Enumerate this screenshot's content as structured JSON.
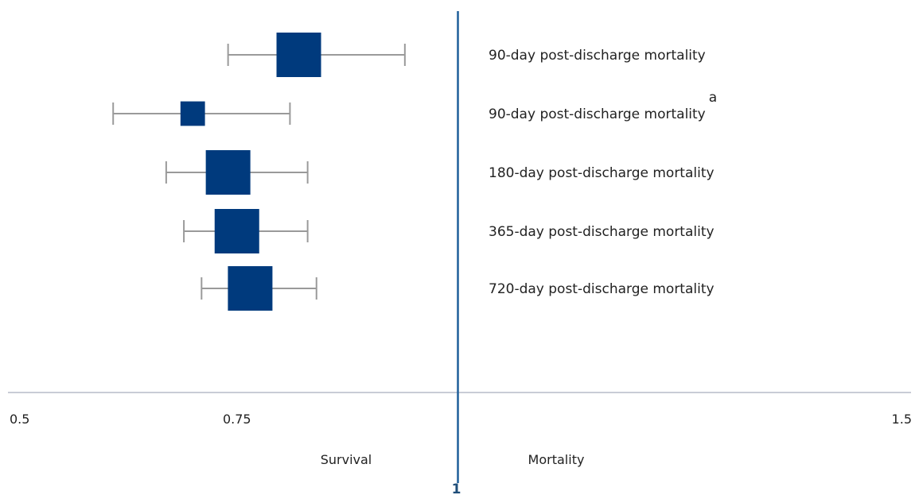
{
  "chart_data": {
    "type": "forest",
    "xlim": [
      0.5,
      1.5
    ],
    "x_ticks": [
      {
        "value": 0.5,
        "label": "0.5"
      },
      {
        "value": 0.75,
        "label": "0.75"
      },
      {
        "value": 1.5,
        "label": "1.5"
      }
    ],
    "reference_line": {
      "value": 1,
      "label": "1"
    },
    "side_labels": {
      "left": "Survival",
      "right": "Mortality"
    },
    "grid": false,
    "legend": "none",
    "rows": [
      {
        "label": "90-day post-discharge mortality",
        "superscript": "",
        "estimate": 0.82,
        "ci_low": 0.74,
        "ci_high": 0.94,
        "weight": 1.0
      },
      {
        "label": "90-day post-discharge mortality",
        "superscript": "a",
        "estimate": 0.7,
        "ci_low": 0.61,
        "ci_high": 0.81,
        "weight": 0.55
      },
      {
        "label": "180-day post-discharge mortality",
        "superscript": "",
        "estimate": 0.74,
        "ci_low": 0.67,
        "ci_high": 0.83,
        "weight": 1.0
      },
      {
        "label": "365-day post-discharge mortality",
        "superscript": "",
        "estimate": 0.75,
        "ci_low": 0.69,
        "ci_high": 0.83,
        "weight": 1.0
      },
      {
        "label": "720-day post-discharge mortality",
        "superscript": "",
        "estimate": 0.765,
        "ci_low": 0.71,
        "ci_high": 0.84,
        "weight": 1.0
      }
    ],
    "colors": {
      "marker": "#003a7d",
      "whisker": "#9a9a9a",
      "axis": "#c8ccd6",
      "reference": "#1f5f9a"
    }
  }
}
